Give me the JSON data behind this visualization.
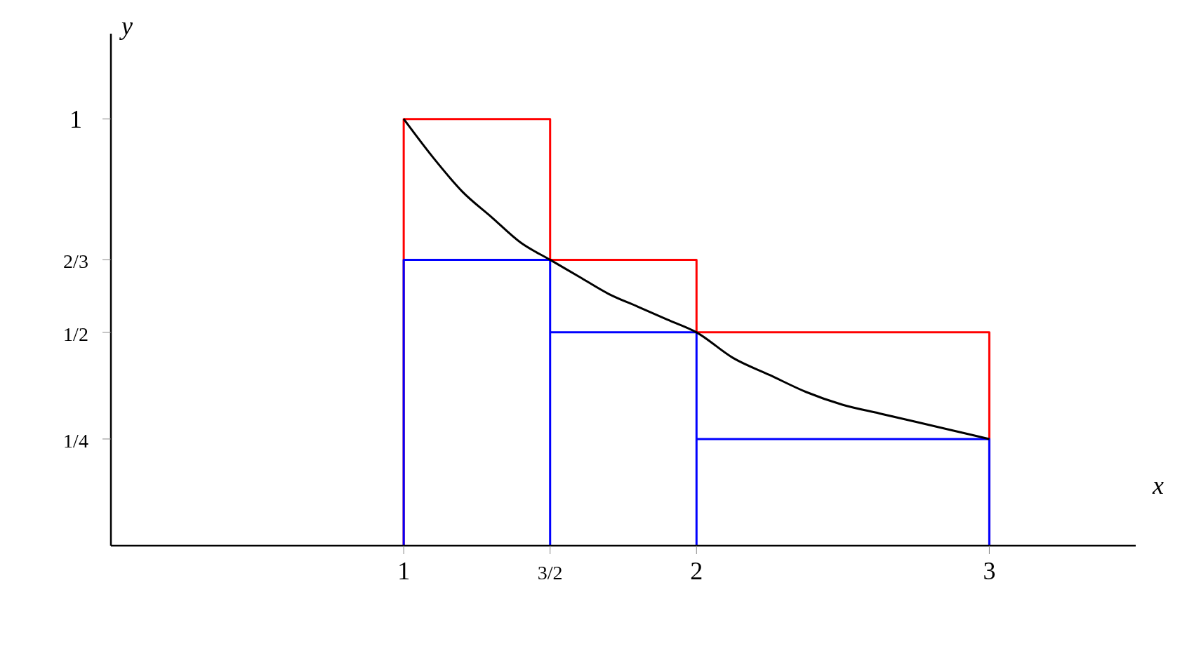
{
  "chart_data": {
    "type": "line",
    "xlabel": "x",
    "ylabel": "y",
    "xlim": [
      0,
      3.5
    ],
    "ylim": [
      0,
      1.2
    ],
    "xticks": [
      1,
      {
        "value": 1.5,
        "label": "3/2"
      },
      2,
      3
    ],
    "yticks": [
      {
        "value": 0.25,
        "label": "1/4"
      },
      {
        "value": 0.5,
        "label": "1/2"
      },
      {
        "value": 0.67,
        "label": "2/3"
      },
      1
    ],
    "grid": false,
    "legend": false,
    "marker": "none",
    "line_style": "solid",
    "series": [
      {
        "type": "step",
        "color": "#ff0000",
        "x": [
          1,
          1,
          1.5,
          2,
          3,
          3
        ],
        "values": [
          0,
          1,
          0.67,
          0.5,
          0.5,
          0
        ]
      },
      {
        "type": "step",
        "color": "#0000ff",
        "x": [
          1,
          1,
          1.5,
          1.5,
          2,
          2,
          3,
          3
        ],
        "values": [
          0,
          0.67,
          0,
          0.5,
          0,
          0.25,
          0.25,
          0
        ]
      },
      {
        "color": "#000000",
        "x": [
          1,
          1.1,
          1.2,
          1.3,
          1.4,
          1.5,
          1.6,
          1.7,
          1.8,
          1.9,
          2,
          2.125,
          2.25,
          2.375,
          2.5,
          2.625,
          2.75,
          2.875,
          3
        ],
        "values": [
          1,
          0.91,
          0.83,
          0.77,
          0.71,
          0.67,
          0.63,
          0.59,
          0.56,
          0.53,
          0.5,
          0.44,
          0.4,
          0.36,
          0.33,
          0.31,
          0.29,
          0.27,
          0.25
        ]
      }
    ]
  }
}
